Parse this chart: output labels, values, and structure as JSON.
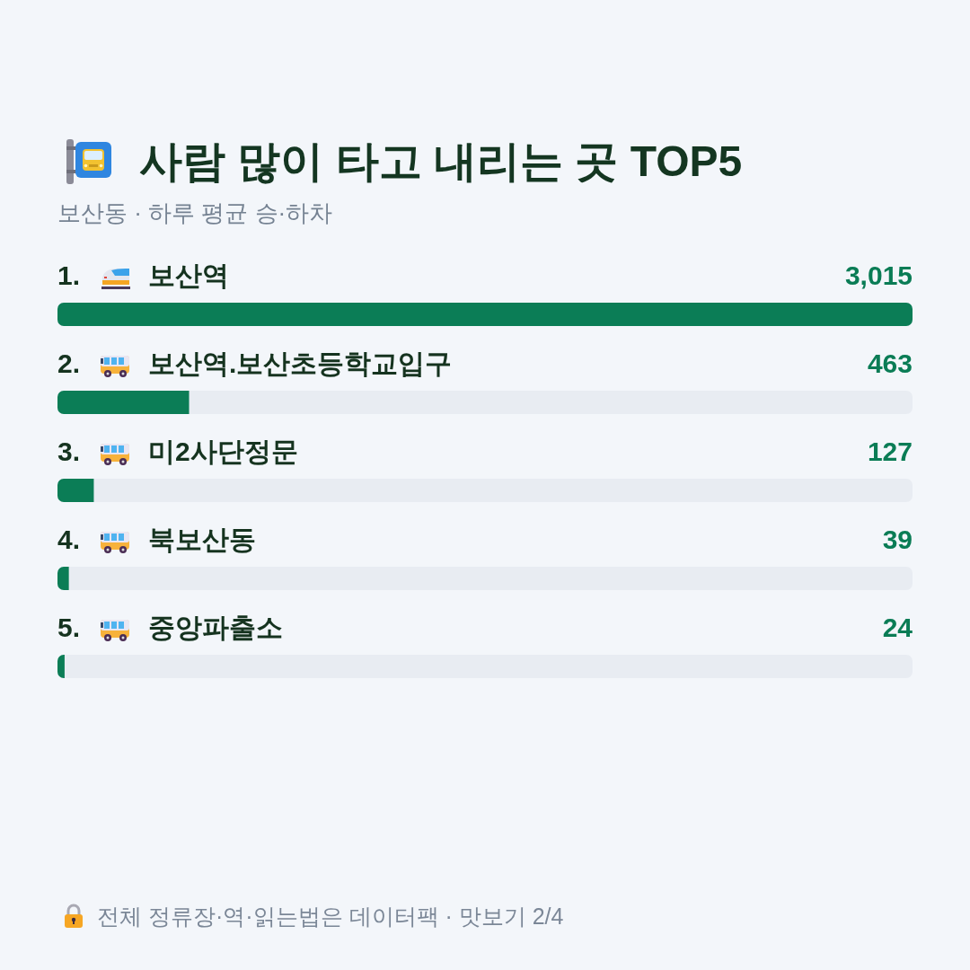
{
  "chart_data": {
    "type": "bar",
    "orientation": "horizontal",
    "title": "사람 많이 타고 내리는 곳 TOP5",
    "subtitle": "보산동 · 하루 평균 승·하차",
    "categories": [
      "1. 보산역",
      "2. 보산역.보산초등학교입구",
      "3. 미2사단정문",
      "4. 북보산동",
      "5. 중앙파출소"
    ],
    "values": [
      3015,
      463,
      127,
      39,
      24
    ],
    "value_labels": [
      "3,015",
      "463",
      "127",
      "39",
      "24"
    ],
    "color": "#0b7d56",
    "xlim": [
      0,
      3015
    ],
    "tick_labels": "y",
    "annotations": [
      "전체 정류장·역·읽는법은 데이터팩 · 맛보기 2/4"
    ]
  }
}
